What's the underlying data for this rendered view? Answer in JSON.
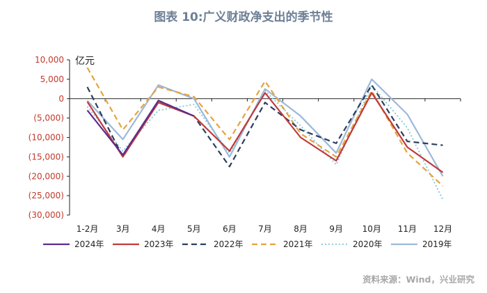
{
  "title": "图表 10:广义财政净支出的季节性",
  "source": "资料来源：Wind，兴业研究",
  "chart_data": {
    "type": "line",
    "unit": "亿元",
    "categories": [
      "1-2月",
      "3月",
      "4月",
      "5月",
      "6月",
      "7月",
      "8月",
      "9月",
      "10月",
      "11月",
      "12月"
    ],
    "ylim": [
      -30000,
      10000
    ],
    "yticks": [
      10000,
      5000,
      0,
      -5000,
      -10000,
      -15000,
      -20000,
      -25000,
      -30000
    ],
    "ytick_labels": [
      "10,000",
      "5,000",
      "0",
      "(5,000)",
      "(10,000)",
      "(15,000)",
      "(20,000)",
      "(25,000)",
      "(30,000)"
    ],
    "grid": false,
    "legend_position": "bottom",
    "series": [
      {
        "name": "2024年",
        "color": "#5b2c8f",
        "dash": "solid",
        "values": [
          -3000,
          -14500,
          -500,
          -4500,
          null,
          null,
          null,
          null,
          null,
          null,
          null
        ]
      },
      {
        "name": "2023年",
        "color": "#c0393b",
        "dash": "solid",
        "values": [
          -800,
          -15000,
          -1000,
          -4500,
          -13500,
          1500,
          -10000,
          -16000,
          1500,
          -12500,
          -19000
        ]
      },
      {
        "name": "2022年",
        "color": "#2c3e5e",
        "dash": "dashed",
        "values": [
          3000,
          -15000,
          -500,
          -4500,
          -17500,
          -1000,
          -8000,
          -11500,
          3500,
          -11000,
          -12000
        ]
      },
      {
        "name": "2021年",
        "color": "#e6a23c",
        "dash": "dashed",
        "values": [
          8000,
          -8000,
          3000,
          500,
          -10500,
          4500,
          -9000,
          -15000,
          2000,
          -14000,
          -22500
        ]
      },
      {
        "name": "2020年",
        "color": "#7ec8d6",
        "dash": "dotted",
        "values": [
          -2000,
          -13500,
          -3000,
          -1500,
          -14000,
          2000,
          -7000,
          -17000,
          3500,
          -7500,
          -26000
        ]
      },
      {
        "name": "2019年",
        "color": "#9db8d9",
        "dash": "solid",
        "values": [
          -500,
          -10500,
          3500,
          0,
          -15000,
          2500,
          -4500,
          -14000,
          5000,
          -4000,
          -20000
        ]
      }
    ]
  }
}
